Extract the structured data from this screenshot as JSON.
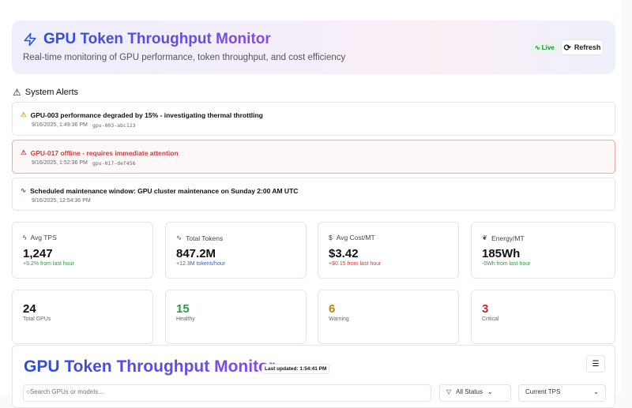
{
  "header": {
    "title": "GPU Token Throughput Monitor",
    "subtitle": "Real-time monitoring of GPU performance, token throughput, and cost efficiency",
    "live_label": "Live",
    "refresh_label": "Refresh"
  },
  "alerts_title": "System Alerts",
  "alerts": [
    {
      "type": "warning",
      "message": "GPU-003 performance degraded by 15% - investigating thermal throttling",
      "time": "9/16/2025, 1:49:36 PM",
      "gpu": "gpu-003-abc123"
    },
    {
      "type": "error",
      "message": "GPU-017 offline - requires immediate attention",
      "time": "9/16/2025, 1:52:36 PM",
      "gpu": "gpu-017-def456"
    },
    {
      "type": "info",
      "message": "Scheduled maintenance window: GPU cluster maintenance on Sunday 2:00 AM UTC",
      "time": "9/16/2025, 12:54:36 PM"
    }
  ],
  "metrics": [
    {
      "label": "Avg TPS",
      "value": "1,247",
      "sub": "+5.2% from last hour",
      "icon": "zap-icon",
      "color": "#2e9a4a"
    },
    {
      "label": "Total Tokens",
      "value": "847.2M",
      "sub": "+12.3M tokens/hour",
      "icon": "activity-icon",
      "color": "#3b5bdb"
    },
    {
      "label": "Avg Cost/MT",
      "value": "$3.42",
      "sub": "+$0.15 from last hour",
      "icon": "dollar-icon",
      "color": "#d23b3b"
    },
    {
      "label": "Energy/MT",
      "value": "185Wh",
      "sub": "-0Wh from last hour",
      "icon": "leaf-icon",
      "color": "#2e9a4a"
    }
  ],
  "counts": [
    {
      "value": "24",
      "label": "Total GPUs",
      "color": "#111111"
    },
    {
      "value": "15",
      "label": "Healthy",
      "color": "#2e9a4a"
    },
    {
      "value": "6",
      "label": "Warning",
      "color": "#b8860b"
    },
    {
      "value": "3",
      "label": "Critical",
      "color": "#d21f1f"
    }
  ],
  "main": {
    "title": "GPU Token Throughput Monitor",
    "last_updated": "Last updated: 1:54:41 PM",
    "search_placeholder": "Search GPUs or models...",
    "status_filter": "All Status",
    "sort": "Current TPS"
  }
}
